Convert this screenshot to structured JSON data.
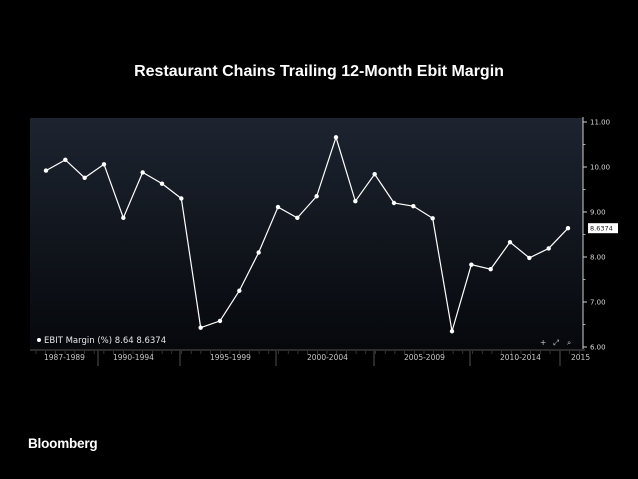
{
  "title": "Restaurant Chains Trailing 12-Month Ebit Margin",
  "brand": "Bloomberg",
  "chart_data": {
    "type": "line",
    "title": "Restaurant Chains Trailing 12-Month Ebit Margin",
    "series": [
      {
        "name": "EBIT Margin (%)",
        "legend_text": "EBIT Margin (%) 8.64 8.6374",
        "last_value_label": "8.6374",
        "values": [
          9.92,
          10.16,
          9.76,
          10.06,
          8.87,
          9.88,
          9.63,
          9.3,
          6.43,
          6.58,
          7.25,
          8.1,
          9.11,
          8.87,
          9.35,
          10.66,
          9.24,
          9.84,
          9.2,
          9.13,
          8.86,
          6.35,
          7.83,
          7.73,
          8.33,
          7.98,
          8.19,
          8.64
        ]
      }
    ],
    "x_tick_labels": [
      "1987-1989",
      "1990-1994",
      "1995-1999",
      "2000-2004",
      "2005-2009",
      "2010-2014",
      "2015"
    ],
    "y_ticks": [
      "11.00",
      "10.00",
      "9.00",
      "8.00",
      "7.00",
      "6.00"
    ],
    "ylim": [
      6.0,
      11.0
    ],
    "grid": false,
    "legend_position": "bottom-left",
    "colors": {
      "line": "#ffffff",
      "plot_bg_top": "#1d2430",
      "plot_bg_bottom": "#06080c",
      "axis": "#cfcfcf",
      "value_label_bg": "#ffffff"
    }
  }
}
